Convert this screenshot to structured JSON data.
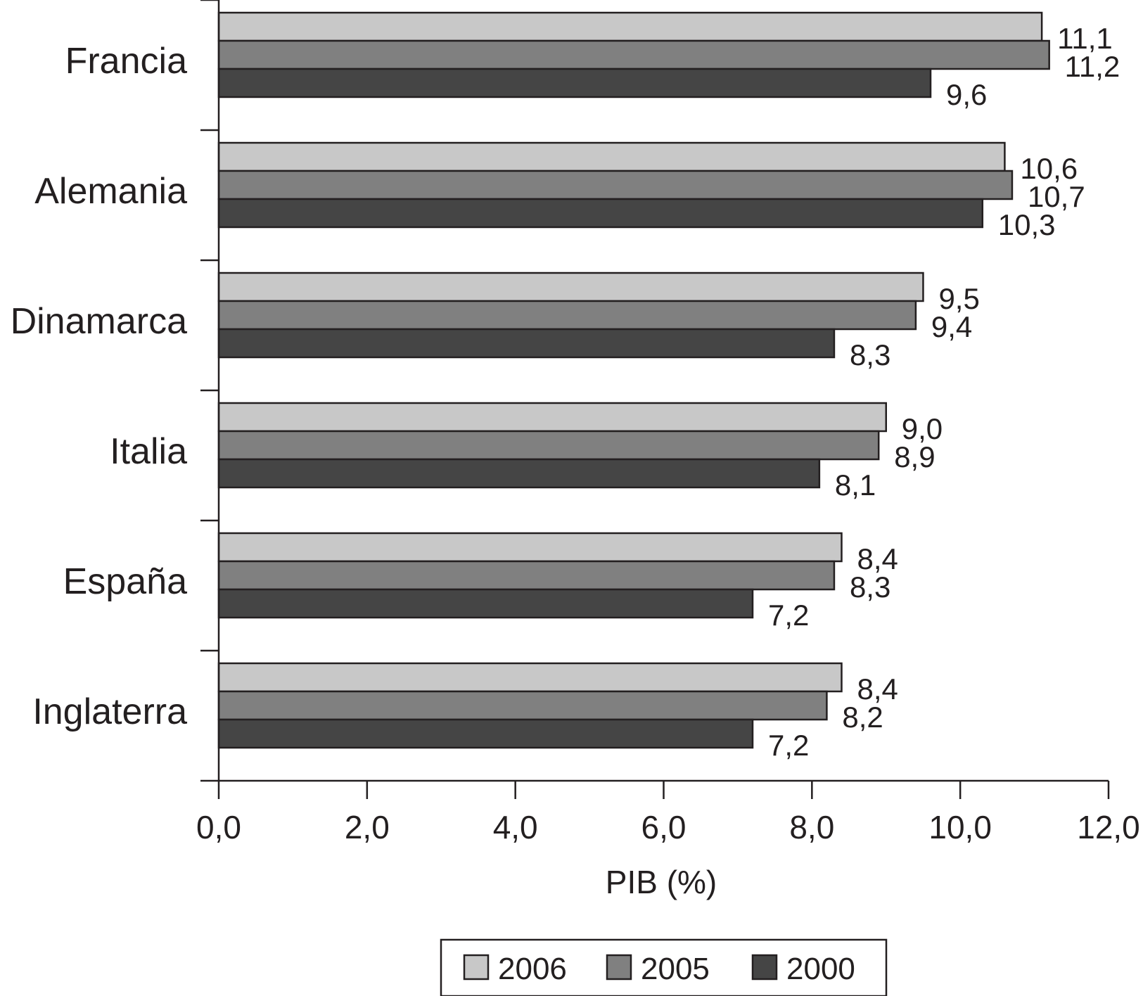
{
  "chart_data": {
    "type": "bar",
    "orientation": "horizontal",
    "categories": [
      "Francia",
      "Alemania",
      "Dinamarca",
      "Italia",
      "España",
      "Inglaterra"
    ],
    "series": [
      {
        "name": "2006",
        "values": [
          11.1,
          10.6,
          9.5,
          9.0,
          8.4,
          8.4
        ],
        "labels": [
          "11,1",
          "10,6",
          "9,5",
          "9,0",
          "8,4",
          "8,4"
        ],
        "color": "#c8c8c8"
      },
      {
        "name": "2005",
        "values": [
          11.2,
          10.7,
          9.4,
          8.9,
          8.3,
          8.2
        ],
        "labels": [
          "11,2",
          "10,7",
          "9,4",
          "8,9",
          "8,3",
          "8,2"
        ],
        "color": "#808080"
      },
      {
        "name": "2000",
        "values": [
          9.6,
          10.3,
          8.3,
          8.1,
          7.2,
          7.2
        ],
        "labels": [
          "9,6",
          "10,3",
          "8,3",
          "8,1",
          "7,2",
          "7,2"
        ],
        "color": "#454545"
      }
    ],
    "xlabel": "PIB (%)",
    "ylabel": "",
    "title": "",
    "xlim": [
      0,
      12
    ],
    "xticks": [
      0,
      2,
      4,
      6,
      8,
      10,
      12
    ],
    "xtick_labels": [
      "0,0",
      "2,0",
      "4,0",
      "6,0",
      "8,0",
      "10,0",
      "12,0"
    ],
    "grid": false,
    "legend_position": "bottom-center"
  }
}
